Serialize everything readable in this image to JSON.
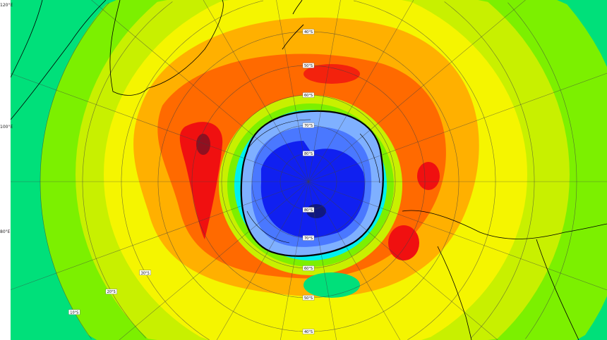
{
  "map": {
    "projection": "south polar stereographic",
    "quantity": "total column ozone",
    "colors": {
      "outer_green": "#00e07a",
      "green": "#7cf000",
      "yellow_green": "#c8f000",
      "yellow": "#f5f500",
      "orange": "#ffb000",
      "dark_orange": "#ff6a00",
      "red": "#f01010",
      "dark_red": "#901020",
      "cyan": "#00f0f0",
      "light_blue": "#7fb0ff",
      "blue": "#4a78ff",
      "deep_blue": "#1020f0",
      "darkest_blue": "#101880",
      "coastline": "#000000",
      "gridline": "#404040"
    },
    "longitude_labels": [
      {
        "text": "120°E"
      },
      {
        "text": "100°E"
      },
      {
        "text": "80°E"
      }
    ],
    "latitude_labels": [
      "80°S",
      "70°S",
      "60°S",
      "50°S",
      "40°S",
      "30°S",
      "20°S",
      "10°S"
    ]
  }
}
